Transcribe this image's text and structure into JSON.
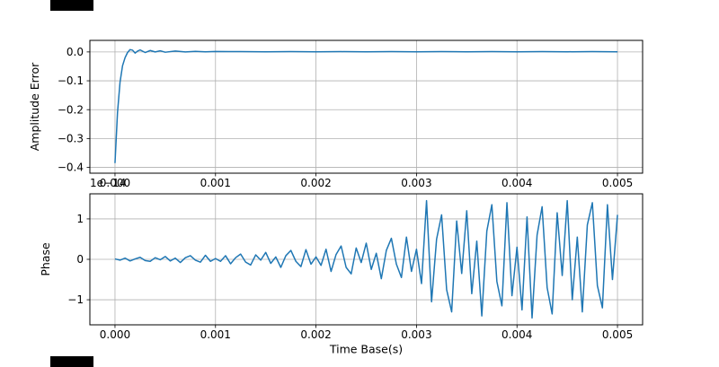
{
  "figure": {
    "background": "#ffffff",
    "line_color": "#1f77b4",
    "grid_color": "#b0b0b0",
    "spine_color": "#000000"
  },
  "chart_data": [
    {
      "type": "line",
      "title": "",
      "xlabel": "",
      "ylabel": "Amplitude Error",
      "legend": null,
      "grid": true,
      "line_color": "#1f77b4",
      "grid_color": "#b0b0b0",
      "xlim": [
        -0.00025,
        0.00525
      ],
      "ylim": [
        -0.42,
        0.04
      ],
      "xticks": [
        0.0,
        0.001,
        0.002,
        0.003,
        0.004,
        0.005
      ],
      "xtick_labels": [
        "0.000",
        "0.001",
        "0.002",
        "0.003",
        "0.004",
        "0.005"
      ],
      "yticks": [
        0.0,
        -0.1,
        -0.2,
        -0.3,
        -0.4
      ],
      "ytick_labels": [
        "0.0",
        "−0.1",
        "−0.2",
        "−0.3",
        "−0.4"
      ],
      "x": [
        0.0,
        2.5e-05,
        5e-05,
        7.5e-05,
        0.0001,
        0.000125,
        0.00015,
        0.000175,
        0.0002,
        0.000225,
        0.00025,
        0.0003,
        0.00035,
        0.0004,
        0.00045,
        0.0005,
        0.0006,
        0.0007,
        0.0008,
        0.0009,
        0.001,
        0.00125,
        0.0015,
        0.00175,
        0.002,
        0.00225,
        0.0025,
        0.00275,
        0.003,
        0.00325,
        0.0035,
        0.00375,
        0.004,
        0.00425,
        0.0045,
        0.00475,
        0.005
      ],
      "y": [
        -0.385,
        -0.21,
        -0.105,
        -0.048,
        -0.02,
        -0.002,
        0.008,
        0.006,
        -0.004,
        0.003,
        0.007,
        -0.002,
        0.005,
        0.0,
        0.004,
        -0.001,
        0.003,
        0.0,
        0.002,
        0.0005,
        0.0015,
        0.001,
        0.0005,
        0.001,
        0.0005,
        0.001,
        0.0005,
        0.001,
        0.0005,
        0.001,
        0.0005,
        0.001,
        0.0005,
        0.001,
        0.0005,
        0.001,
        0.0005
      ]
    },
    {
      "type": "line",
      "title": "",
      "xlabel": "Time Base(s)",
      "ylabel": "Phase",
      "offset_label": "1e−14",
      "y_unit_scale": 1e-14,
      "legend": null,
      "grid": true,
      "line_color": "#1f77b4",
      "grid_color": "#b0b0b0",
      "xlim": [
        -0.00025,
        0.00525
      ],
      "ylim": [
        -1.62,
        1.62
      ],
      "xticks": [
        0.0,
        0.001,
        0.002,
        0.003,
        0.004,
        0.005
      ],
      "xtick_labels": [
        "0.000",
        "0.001",
        "0.002",
        "0.003",
        "0.004",
        "0.005"
      ],
      "yticks": [
        -1,
        0,
        1
      ],
      "ytick_labels": [
        "−1",
        "0",
        "1"
      ],
      "x": [
        0.0,
        5e-05,
        0.0001,
        0.00015,
        0.0002,
        0.00025,
        0.0003,
        0.00035,
        0.0004,
        0.00045,
        0.0005,
        0.00055,
        0.0006,
        0.00065,
        0.0007,
        0.00075,
        0.0008,
        0.00085,
        0.0009,
        0.00095,
        0.001,
        0.00105,
        0.0011,
        0.00115,
        0.0012,
        0.00125,
        0.0013,
        0.00135,
        0.0014,
        0.00145,
        0.0015,
        0.00155,
        0.0016,
        0.00165,
        0.0017,
        0.00175,
        0.0018,
        0.00185,
        0.0019,
        0.00195,
        0.002,
        0.00205,
        0.0021,
        0.00215,
        0.0022,
        0.00225,
        0.0023,
        0.00235,
        0.0024,
        0.00245,
        0.0025,
        0.00255,
        0.0026,
        0.00265,
        0.0027,
        0.00275,
        0.0028,
        0.00285,
        0.0029,
        0.00295,
        0.003,
        0.00305,
        0.0031,
        0.00315,
        0.0032,
        0.00325,
        0.0033,
        0.00335,
        0.0034,
        0.00345,
        0.0035,
        0.00355,
        0.0036,
        0.00365,
        0.0037,
        0.00375,
        0.0038,
        0.00385,
        0.0039,
        0.00395,
        0.004,
        0.00405,
        0.0041,
        0.00415,
        0.0042,
        0.00425,
        0.0043,
        0.00435,
        0.0044,
        0.00445,
        0.0045,
        0.00455,
        0.0046,
        0.00465,
        0.0047,
        0.00475,
        0.0048,
        0.00485,
        0.0049,
        0.00495,
        0.005
      ],
      "y": [
        0.01,
        -0.02,
        0.03,
        -0.04,
        0.01,
        0.05,
        -0.03,
        -0.05,
        0.04,
        -0.01,
        0.07,
        -0.04,
        0.03,
        -0.08,
        0.04,
        0.09,
        -0.02,
        -0.07,
        0.1,
        -0.05,
        0.02,
        -0.05,
        0.09,
        -0.11,
        0.04,
        0.13,
        -0.07,
        -0.14,
        0.11,
        -0.02,
        0.17,
        -0.1,
        0.06,
        -0.2,
        0.09,
        0.22,
        -0.05,
        -0.18,
        0.24,
        -0.12,
        0.06,
        -0.15,
        0.25,
        -0.3,
        0.12,
        0.33,
        -0.2,
        -0.36,
        0.28,
        -0.08,
        0.4,
        -0.25,
        0.15,
        -0.48,
        0.22,
        0.52,
        -0.12,
        -0.45,
        0.55,
        -0.3,
        0.25,
        -0.6,
        1.45,
        -1.05,
        0.5,
        1.1,
        -0.75,
        -1.3,
        0.95,
        -0.35,
        1.2,
        -0.85,
        0.45,
        -1.4,
        0.7,
        1.35,
        -0.55,
        -1.15,
        1.4,
        -0.9,
        0.3,
        -1.25,
        1.05,
        -1.45,
        0.6,
        1.3,
        -0.7,
        -1.35,
        1.15,
        -0.4,
        1.45,
        -1.0,
        0.55,
        -1.3,
        0.85,
        1.4,
        -0.65,
        -1.2,
        1.35,
        -0.5,
        1.1
      ]
    }
  ]
}
